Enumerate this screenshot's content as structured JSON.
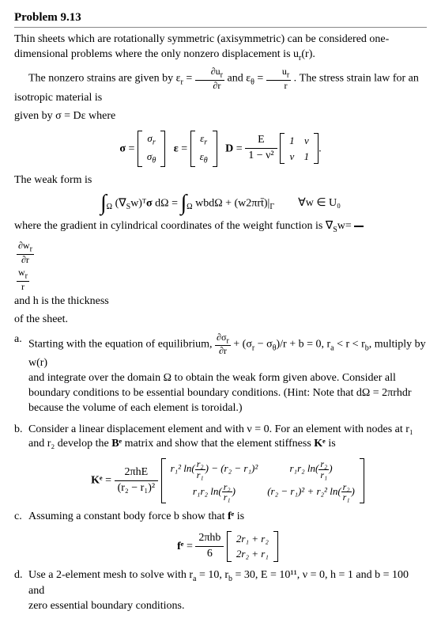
{
  "title": "Problem 9.13",
  "intro": "Thin sheets which are rotationally symmetric (axisymmetric) can be considered one-dimensional problems where the only nonzero displacement is u",
  "intro_sub": "r",
  "intro_tail": "(r).",
  "p1_a": "The nonzero strains are given by ε",
  "p1_b": " and ε",
  "p1_c": ". The stress strain law for an isotropic material is",
  "p2": "given by σ  = Dε where",
  "sigma": "σ",
  "eps": "ε",
  "D": "D",
  "eq1_E": "E",
  "weak_heading": "The weak form is",
  "weak_rhs": "∀w ∈ U₀",
  "grad_desc_a": "where the gradient in cylindrical coordinates of the weight function is ∇",
  "grad_desc_b": "w=",
  "grad_tail": " and h is the thickness",
  "grad_tail2": "of the sheet.",
  "a_text1": "Starting with the equation of equilibrium, ",
  "a_text2": " + (σ",
  "a_text3": " − σ",
  "a_text4": ")/r + b = 0, r",
  "a_text5": " < r < r",
  "a_text6": ", multiply by w(r)",
  "a_line2": "and integrate over the domain Ω to obtain the weak form given above. Consider all boundary conditions to be essential boundary conditions. (Hint: Note that dΩ = 2πrhdr because the volume of each element is toroidal.)",
  "b_text1": "Consider a linear displacement element and with ν = 0. For an element with nodes at r₁ and r₂ develop the ",
  "b_text2": " matrix and show that the element stiffness ",
  "b_text3": " is",
  "Be": "Bᵉ",
  "Ke": "Kᵉ",
  "ke_coef_top": "2πhE",
  "ke_11a": "r₁² ln",
  "ke_rfrac_t": "r₂",
  "ke_rfrac_b": "r₁",
  "ke_11b": " − (r₂ − r₁)²",
  "ke_12": "r₁r₂ ln",
  "ke_21": "r₁r₂ ln",
  "ke_22a": "(r₂ − r₁)² + r₂² ln",
  "c_text": "Assuming a constant body force b show that ",
  "c_text2": " is",
  "fe": "fᵉ",
  "fe_coef_top": "2πhb",
  "fe_coef_bot": "6",
  "fe_r1": "2r₁ + r₂",
  "fe_r2": "2r₂ + r₁",
  "d_text": "Use a 2-element mesh to solve with r",
  "d_vals": " = 10,  r",
  "d_vals2": " = 30,  E = 10¹¹,  ν = 0,  h = 1 and b = 100 and",
  "d_tail": "zero essential boundary conditions.",
  "labels": {
    "a": "a.",
    "b": "b.",
    "c": "c.",
    "d": "d."
  },
  "subs": {
    "r": "r",
    "theta": "θ",
    "S": "S",
    "a": "a",
    "b": "b",
    "nu": "ν",
    "one": "1"
  },
  "frac_dudr_t": "∂u",
  "frac_dudr_b": "∂r",
  "frac_ur_t": "u",
  "frac_ur_b": "r",
  "frac_dwr_t": "∂w",
  "frac_dwr_b": "∂r",
  "frac_wr_t": "w",
  "frac_wr_b": "r",
  "frac_dsr_t": "∂σ",
  "frac_dsr_b": "∂r",
  "weak_mid": "wbdΩ + (w2πrt̄)|",
  "weak_mid_sub": "Γ",
  "nabla": "∇",
  "wT": "w)ᵀ",
  "sigmad": "σ dΩ ="
}
